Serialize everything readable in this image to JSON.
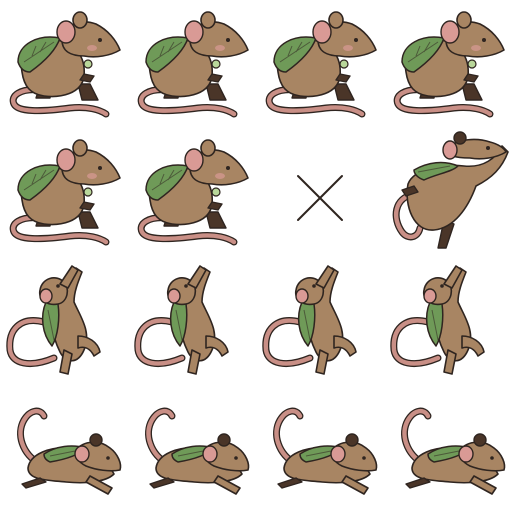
{
  "sheet": {
    "columns": 4,
    "rows": 4,
    "palette": {
      "fur": "#a88563",
      "dark": "#4a3528",
      "ear": "#d99a95",
      "tail": "#c98f86",
      "cloak": "#6f9a58",
      "gem": "#b9d79a",
      "ink": "#2f2520"
    },
    "frames": [
      {
        "pose": "sit",
        "icon": "mouse-sitting-icon"
      },
      {
        "pose": "sit",
        "icon": "mouse-sitting-icon"
      },
      {
        "pose": "sit",
        "icon": "mouse-sitting-icon"
      },
      {
        "pose": "sit",
        "icon": "mouse-sitting-icon"
      },
      {
        "pose": "sit",
        "icon": "mouse-sitting-icon"
      },
      {
        "pose": "sit",
        "icon": "mouse-sitting-icon"
      },
      {
        "pose": "empty",
        "icon": "empty-frame-x-icon"
      },
      {
        "pose": "leap",
        "icon": "mouse-leaping-icon"
      },
      {
        "pose": "climb",
        "icon": "mouse-climbing-icon"
      },
      {
        "pose": "climb",
        "icon": "mouse-climbing-icon"
      },
      {
        "pose": "climb",
        "icon": "mouse-climbing-icon"
      },
      {
        "pose": "climb",
        "icon": "mouse-climbing-icon"
      },
      {
        "pose": "crouch",
        "icon": "mouse-crouching-icon"
      },
      {
        "pose": "crouch",
        "icon": "mouse-crouching-icon"
      },
      {
        "pose": "crouch",
        "icon": "mouse-crouching-icon"
      },
      {
        "pose": "crouch",
        "icon": "mouse-crouching-icon"
      }
    ]
  }
}
